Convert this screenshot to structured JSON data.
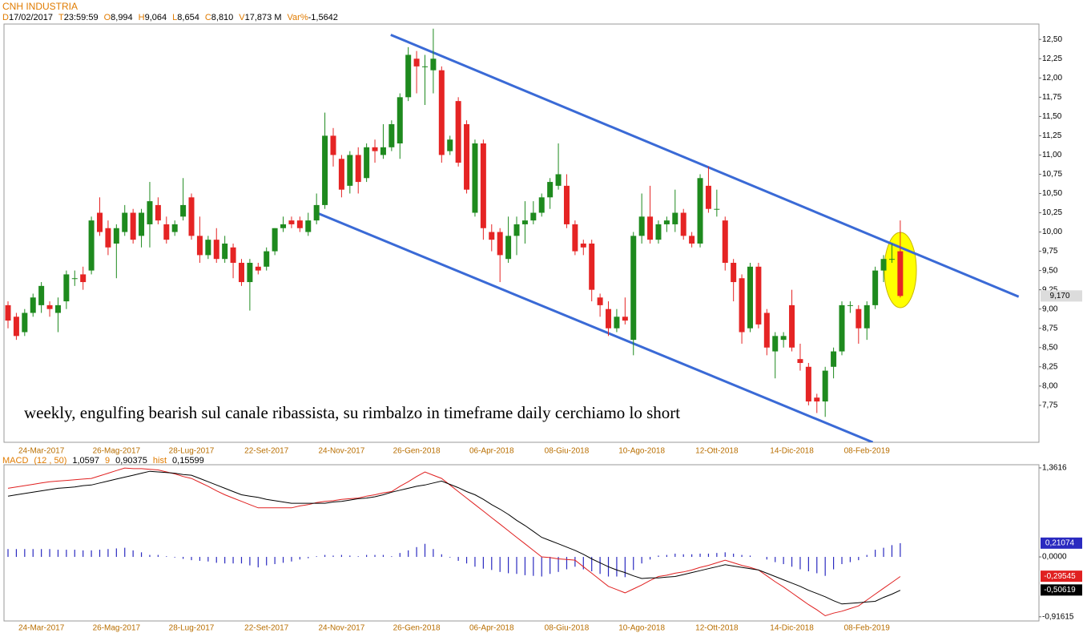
{
  "chart_data": [
    {
      "type": "candlestick",
      "title": "CNH INDUSTRIA",
      "info": [
        {
          "key": "D",
          "value": "17/02/2017"
        },
        {
          "key": "T",
          "value": "23:59:59"
        },
        {
          "key": "O",
          "value": "8,994"
        },
        {
          "key": "H",
          "value": "9,064"
        },
        {
          "key": "L",
          "value": "8,654"
        },
        {
          "key": "C",
          "value": "8,810"
        },
        {
          "key": "V",
          "value": "17,873 M"
        },
        {
          "key": "Var%",
          "value": "-1,5642"
        }
      ],
      "annotation": "weekly, engulfing bearish sul canale ribassista, su rimbalzo in timeframe daily cerchiamo lo short",
      "categories": [
        null,
        null,
        null,
        null,
        "24-Mar-2017",
        null,
        null,
        null,
        null,
        null,
        null,
        null,
        null,
        "26-Mag-2017",
        null,
        null,
        null,
        null,
        null,
        null,
        null,
        null,
        "28-Lug-2017",
        null,
        null,
        null,
        null,
        null,
        null,
        null,
        null,
        "22-Set-2017",
        null,
        null,
        null,
        null,
        null,
        null,
        null,
        null,
        "24-Nov-2017",
        null,
        null,
        null,
        null,
        null,
        null,
        null,
        null,
        "26-Gen-2018",
        null,
        null,
        null,
        null,
        null,
        null,
        null,
        null,
        "06-Apr-2018",
        null,
        null,
        null,
        null,
        null,
        null,
        null,
        null,
        "08-Giu-2018",
        null,
        null,
        null,
        null,
        null,
        null,
        null,
        null,
        "10-Ago-2018",
        null,
        null,
        null,
        null,
        null,
        null,
        null,
        null,
        "12-Ott-2018",
        null,
        null,
        null,
        null,
        null,
        null,
        null,
        null,
        "14-Dic-2018",
        null,
        null,
        null,
        null,
        null,
        null,
        null,
        null,
        "08-Feb-2019",
        null,
        null,
        null,
        null
      ],
      "open": [
        9.05,
        8.9,
        8.7,
        8.95,
        9.05,
        9.05,
        8.95,
        9.1,
        9.4,
        9.45,
        9.5,
        10.25,
        10.05,
        9.85,
        10.0,
        10.25,
        9.95,
        10.1,
        10.35,
        10.1,
        10.0,
        10.2,
        10.45,
        9.95,
        9.7,
        9.9,
        9.65,
        9.8,
        9.6,
        9.35,
        9.55,
        9.55,
        9.75,
        10.05,
        10.15,
        10.15,
        10.0,
        10.15,
        10.35,
        11.25,
        10.95,
        10.6,
        11.0,
        10.7,
        11.1,
        11.0,
        11.1,
        11.15,
        11.75,
        12.25,
        12.15,
        12.1,
        12.1,
        11.05,
        11.7,
        11.4,
        10.25,
        11.15,
        10.0,
        10.0,
        9.65,
        9.95,
        10.1,
        10.15,
        10.25,
        10.45,
        10.6,
        10.6,
        10.1,
        9.85,
        9.85,
        9.15,
        9.0,
        8.75,
        8.9,
        8.6,
        9.95,
        10.2,
        9.9,
        10.1,
        10.1,
        10.25,
        9.95,
        9.85,
        10.6,
        10.3,
        10.15,
        9.6,
        9.4,
        8.75,
        9.55,
        8.95,
        8.45,
        8.6,
        9.05,
        8.35,
        8.25,
        7.85,
        7.8,
        8.25,
        8.45,
        9.05,
        9.0,
        8.75,
        9.05,
        9.5,
        9.65,
        9.75
      ],
      "high": [
        9.1,
        8.95,
        9.0,
        9.2,
        9.35,
        9.1,
        9.15,
        9.5,
        9.5,
        9.55,
        10.2,
        10.45,
        10.15,
        10.1,
        10.35,
        10.3,
        10.3,
        10.65,
        10.45,
        10.2,
        10.15,
        10.7,
        10.5,
        10.2,
        9.95,
        10.05,
        9.95,
        9.85,
        9.65,
        9.65,
        9.6,
        9.8,
        10.05,
        10.2,
        10.2,
        10.2,
        10.25,
        10.5,
        11.55,
        11.35,
        11.0,
        11.05,
        11.1,
        11.15,
        11.2,
        11.4,
        11.45,
        11.8,
        12.4,
        12.35,
        12.3,
        12.64,
        12.15,
        11.25,
        11.75,
        11.45,
        11.2,
        11.2,
        10.1,
        10.05,
        10.2,
        10.2,
        10.4,
        10.4,
        10.5,
        10.7,
        11.15,
        10.75,
        10.15,
        9.9,
        9.9,
        9.2,
        9.1,
        9.0,
        9.15,
        10.0,
        10.5,
        10.6,
        10.15,
        10.2,
        10.55,
        10.3,
        10.0,
        10.75,
        10.85,
        10.55,
        10.2,
        9.65,
        9.45,
        9.6,
        9.6,
        9.0,
        8.7,
        8.7,
        9.25,
        8.55,
        8.3,
        7.9,
        8.25,
        8.5,
        9.1,
        9.1,
        9.05,
        9.1,
        9.55,
        9.7,
        9.85,
        10.15
      ],
      "low": [
        8.75,
        8.6,
        8.65,
        8.9,
        8.95,
        8.9,
        8.7,
        9.0,
        9.3,
        9.25,
        9.45,
        9.95,
        9.7,
        9.4,
        9.95,
        9.85,
        9.8,
        9.8,
        10.1,
        9.85,
        9.95,
        10.15,
        9.9,
        9.6,
        9.65,
        9.6,
        9.6,
        9.4,
        9.3,
        8.98,
        9.45,
        9.5,
        9.7,
        10.0,
        10.05,
        10.0,
        9.95,
        10.1,
        10.3,
        10.85,
        10.45,
        10.5,
        10.5,
        10.65,
        10.9,
        10.95,
        11.05,
        10.95,
        11.7,
        11.8,
        11.65,
        11.8,
        10.9,
        11.0,
        10.85,
        10.5,
        10.2,
        9.9,
        9.75,
        9.35,
        9.6,
        9.7,
        9.85,
        10.1,
        10.2,
        10.3,
        10.55,
        10.05,
        9.7,
        9.7,
        9.1,
        8.9,
        8.65,
        8.7,
        8.8,
        8.4,
        9.85,
        9.85,
        9.85,
        10.0,
        10.0,
        9.9,
        9.8,
        9.8,
        10.25,
        10.2,
        9.5,
        9.1,
        8.55,
        8.7,
        8.75,
        8.4,
        8.1,
        8.5,
        8.45,
        8.2,
        7.75,
        7.65,
        7.6,
        8.1,
        8.4,
        8.95,
        8.55,
        8.6,
        9.0,
        9.35,
        9.6,
        9.15
      ],
      "close": [
        8.85,
        8.65,
        8.95,
        9.15,
        9.3,
        9.0,
        9.05,
        9.45,
        9.4,
        9.35,
        10.15,
        10.0,
        9.8,
        10.05,
        10.25,
        9.9,
        10.25,
        10.4,
        10.15,
        9.9,
        10.1,
        10.35,
        9.95,
        9.7,
        9.9,
        9.65,
        9.85,
        9.6,
        9.35,
        9.6,
        9.5,
        9.75,
        10.05,
        10.1,
        10.1,
        10.05,
        10.15,
        10.35,
        11.25,
        11.0,
        10.55,
        11.0,
        10.65,
        11.1,
        11.05,
        11.1,
        11.4,
        11.75,
        12.3,
        12.15,
        12.15,
        12.25,
        11.0,
        11.2,
        10.9,
        10.55,
        11.15,
        10.05,
        9.9,
        9.7,
        9.95,
        10.1,
        10.15,
        10.25,
        10.45,
        10.65,
        10.75,
        10.1,
        9.75,
        9.8,
        9.25,
        9.05,
        8.75,
        8.9,
        8.85,
        9.95,
        10.2,
        9.9,
        10.1,
        10.15,
        10.25,
        9.95,
        9.85,
        10.7,
        10.3,
        10.3,
        9.6,
        9.35,
        8.7,
        9.55,
        8.8,
        8.5,
        8.65,
        8.65,
        8.5,
        8.3,
        7.8,
        7.8,
        8.2,
        8.45,
        9.05,
        9.05,
        8.75,
        9.05,
        9.5,
        9.65,
        9.65,
        9.17
      ],
      "up_color": "#1e8a1e",
      "down_color": "#e52424",
      "ylim": [
        7.27,
        12.7
      ],
      "yticks": [
        {
          "value": 7.75,
          "label": "7,75"
        },
        {
          "value": 8,
          "label": "8,00"
        },
        {
          "value": 8.25,
          "label": "8,25"
        },
        {
          "value": 8.5,
          "label": "8,50"
        },
        {
          "value": 8.75,
          "label": "8,75"
        },
        {
          "value": 9,
          "label": "9,00"
        },
        {
          "value": 9.25,
          "label": "9,25"
        },
        {
          "value": 9.5,
          "label": "9,50"
        },
        {
          "value": 9.75,
          "label": "9,75"
        },
        {
          "value": 10,
          "label": "10,00"
        },
        {
          "value": 10.25,
          "label": "10,25"
        },
        {
          "value": 10.5,
          "label": "10,50"
        },
        {
          "value": 10.75,
          "label": "10,75"
        },
        {
          "value": 11,
          "label": "11,00"
        },
        {
          "value": 11.25,
          "label": "11,25"
        },
        {
          "value": 11.5,
          "label": "11,50"
        },
        {
          "value": 11.75,
          "label": "11,75"
        },
        {
          "value": 12,
          "label": "12,00"
        },
        {
          "value": 12.25,
          "label": "12,25"
        },
        {
          "value": 12.5,
          "label": "12,50"
        }
      ],
      "last_price": {
        "value": 9.17,
        "label": "9,170"
      },
      "trendline_color": "#3a6ad6",
      "trendlines": [
        {
          "x": [
            45.9,
            121.2
          ],
          "y": [
            12.56,
            9.16
          ]
        },
        {
          "x": [
            37,
            103.7
          ],
          "y": [
            10.25,
            7.27
          ]
        }
      ]
    },
    {
      "type": "macd",
      "title": "MACD",
      "info": [
        {
          "key": "(12 , 50)",
          "value": "1,0597"
        },
        {
          "key": "9",
          "value": "0,90375"
        },
        {
          "key": "hist",
          "value": "0,15599"
        }
      ],
      "series": [
        {
          "color": "#e02020",
          "values": [
            1.05,
            1.07,
            1.09,
            1.11,
            1.13,
            1.15,
            1.16,
            1.17,
            1.18,
            1.19,
            1.2,
            1.24,
            1.28,
            1.32,
            1.36,
            1.35,
            1.35,
            1.34,
            1.33,
            1.3,
            1.27,
            1.23,
            1.2,
            1.14,
            1.08,
            1.01,
            0.95,
            0.9,
            0.85,
            0.8,
            0.75,
            0.75,
            0.75,
            0.75,
            0.75,
            0.78,
            0.8,
            0.83,
            0.85,
            0.86,
            0.88,
            0.89,
            0.9,
            0.93,
            0.95,
            0.98,
            1.0,
            1.08,
            1.15,
            1.23,
            1.3,
            1.25,
            1.2,
            1.1,
            1.0,
            0.9,
            0.8,
            0.7,
            0.6,
            0.5,
            0.4,
            0.3,
            0.2,
            0.1,
            0.0,
            -0.01,
            -0.03,
            -0.04,
            -0.05,
            -0.15,
            -0.25,
            -0.35,
            -0.45,
            -0.5,
            -0.55,
            -0.49,
            -0.43,
            -0.36,
            -0.3,
            -0.28,
            -0.25,
            -0.23,
            -0.2,
            -0.16,
            -0.13,
            -0.09,
            -0.05,
            -0.09,
            -0.13,
            -0.16,
            -0.2,
            -0.29,
            -0.38,
            -0.46,
            -0.55,
            -0.64,
            -0.73,
            -0.81,
            -0.9,
            -0.86,
            -0.83,
            -0.79,
            -0.75,
            -0.66,
            -0.57,
            -0.48,
            -0.39,
            -0.3
          ],
          "last": {
            "value": -0.29545,
            "label": "-0,29545"
          }
        },
        {
          "color": "#000000",
          "values": [
            0.93,
            0.95,
            0.97,
            0.99,
            1.01,
            1.03,
            1.05,
            1.06,
            1.07,
            1.09,
            1.1,
            1.13,
            1.16,
            1.19,
            1.22,
            1.25,
            1.28,
            1.31,
            1.3,
            1.29,
            1.28,
            1.26,
            1.25,
            1.2,
            1.15,
            1.1,
            1.05,
            1.0,
            0.95,
            0.93,
            0.91,
            0.88,
            0.86,
            0.84,
            0.82,
            0.82,
            0.82,
            0.82,
            0.82,
            0.84,
            0.85,
            0.87,
            0.89,
            0.9,
            0.92,
            0.95,
            0.99,
            1.02,
            1.05,
            1.08,
            1.1,
            1.13,
            1.16,
            1.11,
            1.06,
            1.0,
            0.95,
            0.88,
            0.8,
            0.73,
            0.65,
            0.56,
            0.48,
            0.39,
            0.3,
            0.25,
            0.2,
            0.15,
            0.1,
            0.04,
            -0.03,
            -0.09,
            -0.15,
            -0.2,
            -0.24,
            -0.29,
            -0.33,
            -0.32,
            -0.32,
            -0.31,
            -0.3,
            -0.27,
            -0.24,
            -0.21,
            -0.18,
            -0.15,
            -0.12,
            -0.14,
            -0.16,
            -0.18,
            -0.2,
            -0.25,
            -0.3,
            -0.35,
            -0.4,
            -0.45,
            -0.51,
            -0.56,
            -0.61,
            -0.67,
            -0.72,
            -0.71,
            -0.7,
            -0.69,
            -0.68,
            -0.62,
            -0.57,
            -0.51
          ],
          "last": {
            "value": -0.50619,
            "label": "-0,50619"
          }
        }
      ],
      "histogram": {
        "color": "#2a2ac0",
        "values": [
          0.12,
          0.12,
          0.12,
          0.12,
          0.12,
          0.12,
          0.11,
          0.11,
          0.11,
          0.1,
          0.1,
          0.11,
          0.12,
          0.13,
          0.14,
          0.1,
          0.07,
          0.03,
          0.03,
          0.01,
          -0.01,
          -0.03,
          -0.05,
          -0.06,
          -0.07,
          -0.09,
          -0.1,
          -0.1,
          -0.1,
          -0.13,
          -0.16,
          -0.13,
          -0.11,
          -0.09,
          -0.07,
          -0.04,
          -0.02,
          0.01,
          0.03,
          0.02,
          0.03,
          0.02,
          0.01,
          0.03,
          0.03,
          0.03,
          0.01,
          0.06,
          0.1,
          0.15,
          0.2,
          0.12,
          0.04,
          -0.01,
          -0.06,
          -0.1,
          -0.15,
          -0.18,
          -0.2,
          -0.23,
          -0.25,
          -0.26,
          -0.28,
          -0.29,
          -0.3,
          -0.26,
          -0.23,
          -0.19,
          -0.15,
          -0.19,
          -0.22,
          -0.26,
          -0.3,
          -0.3,
          -0.31,
          -0.2,
          -0.1,
          -0.04,
          0.02,
          0.03,
          0.05,
          0.04,
          0.04,
          0.05,
          0.05,
          0.06,
          0.07,
          0.05,
          0.03,
          0.02,
          0.0,
          -0.04,
          -0.08,
          -0.11,
          -0.15,
          -0.19,
          -0.22,
          -0.25,
          -0.29,
          -0.19,
          -0.11,
          -0.08,
          -0.05,
          0.03,
          0.11,
          0.14,
          0.18,
          0.21
        ],
        "last": {
          "value": 0.21074,
          "label": "0,21074"
        }
      },
      "ylim": [
        -0.98,
        1.41
      ],
      "yticks": [
        {
          "value": -0.91615,
          "label": "-0,91615"
        },
        {
          "value": 0,
          "label": "0,0000"
        },
        {
          "value": 1.3616,
          "label": "1,3616"
        }
      ]
    }
  ]
}
